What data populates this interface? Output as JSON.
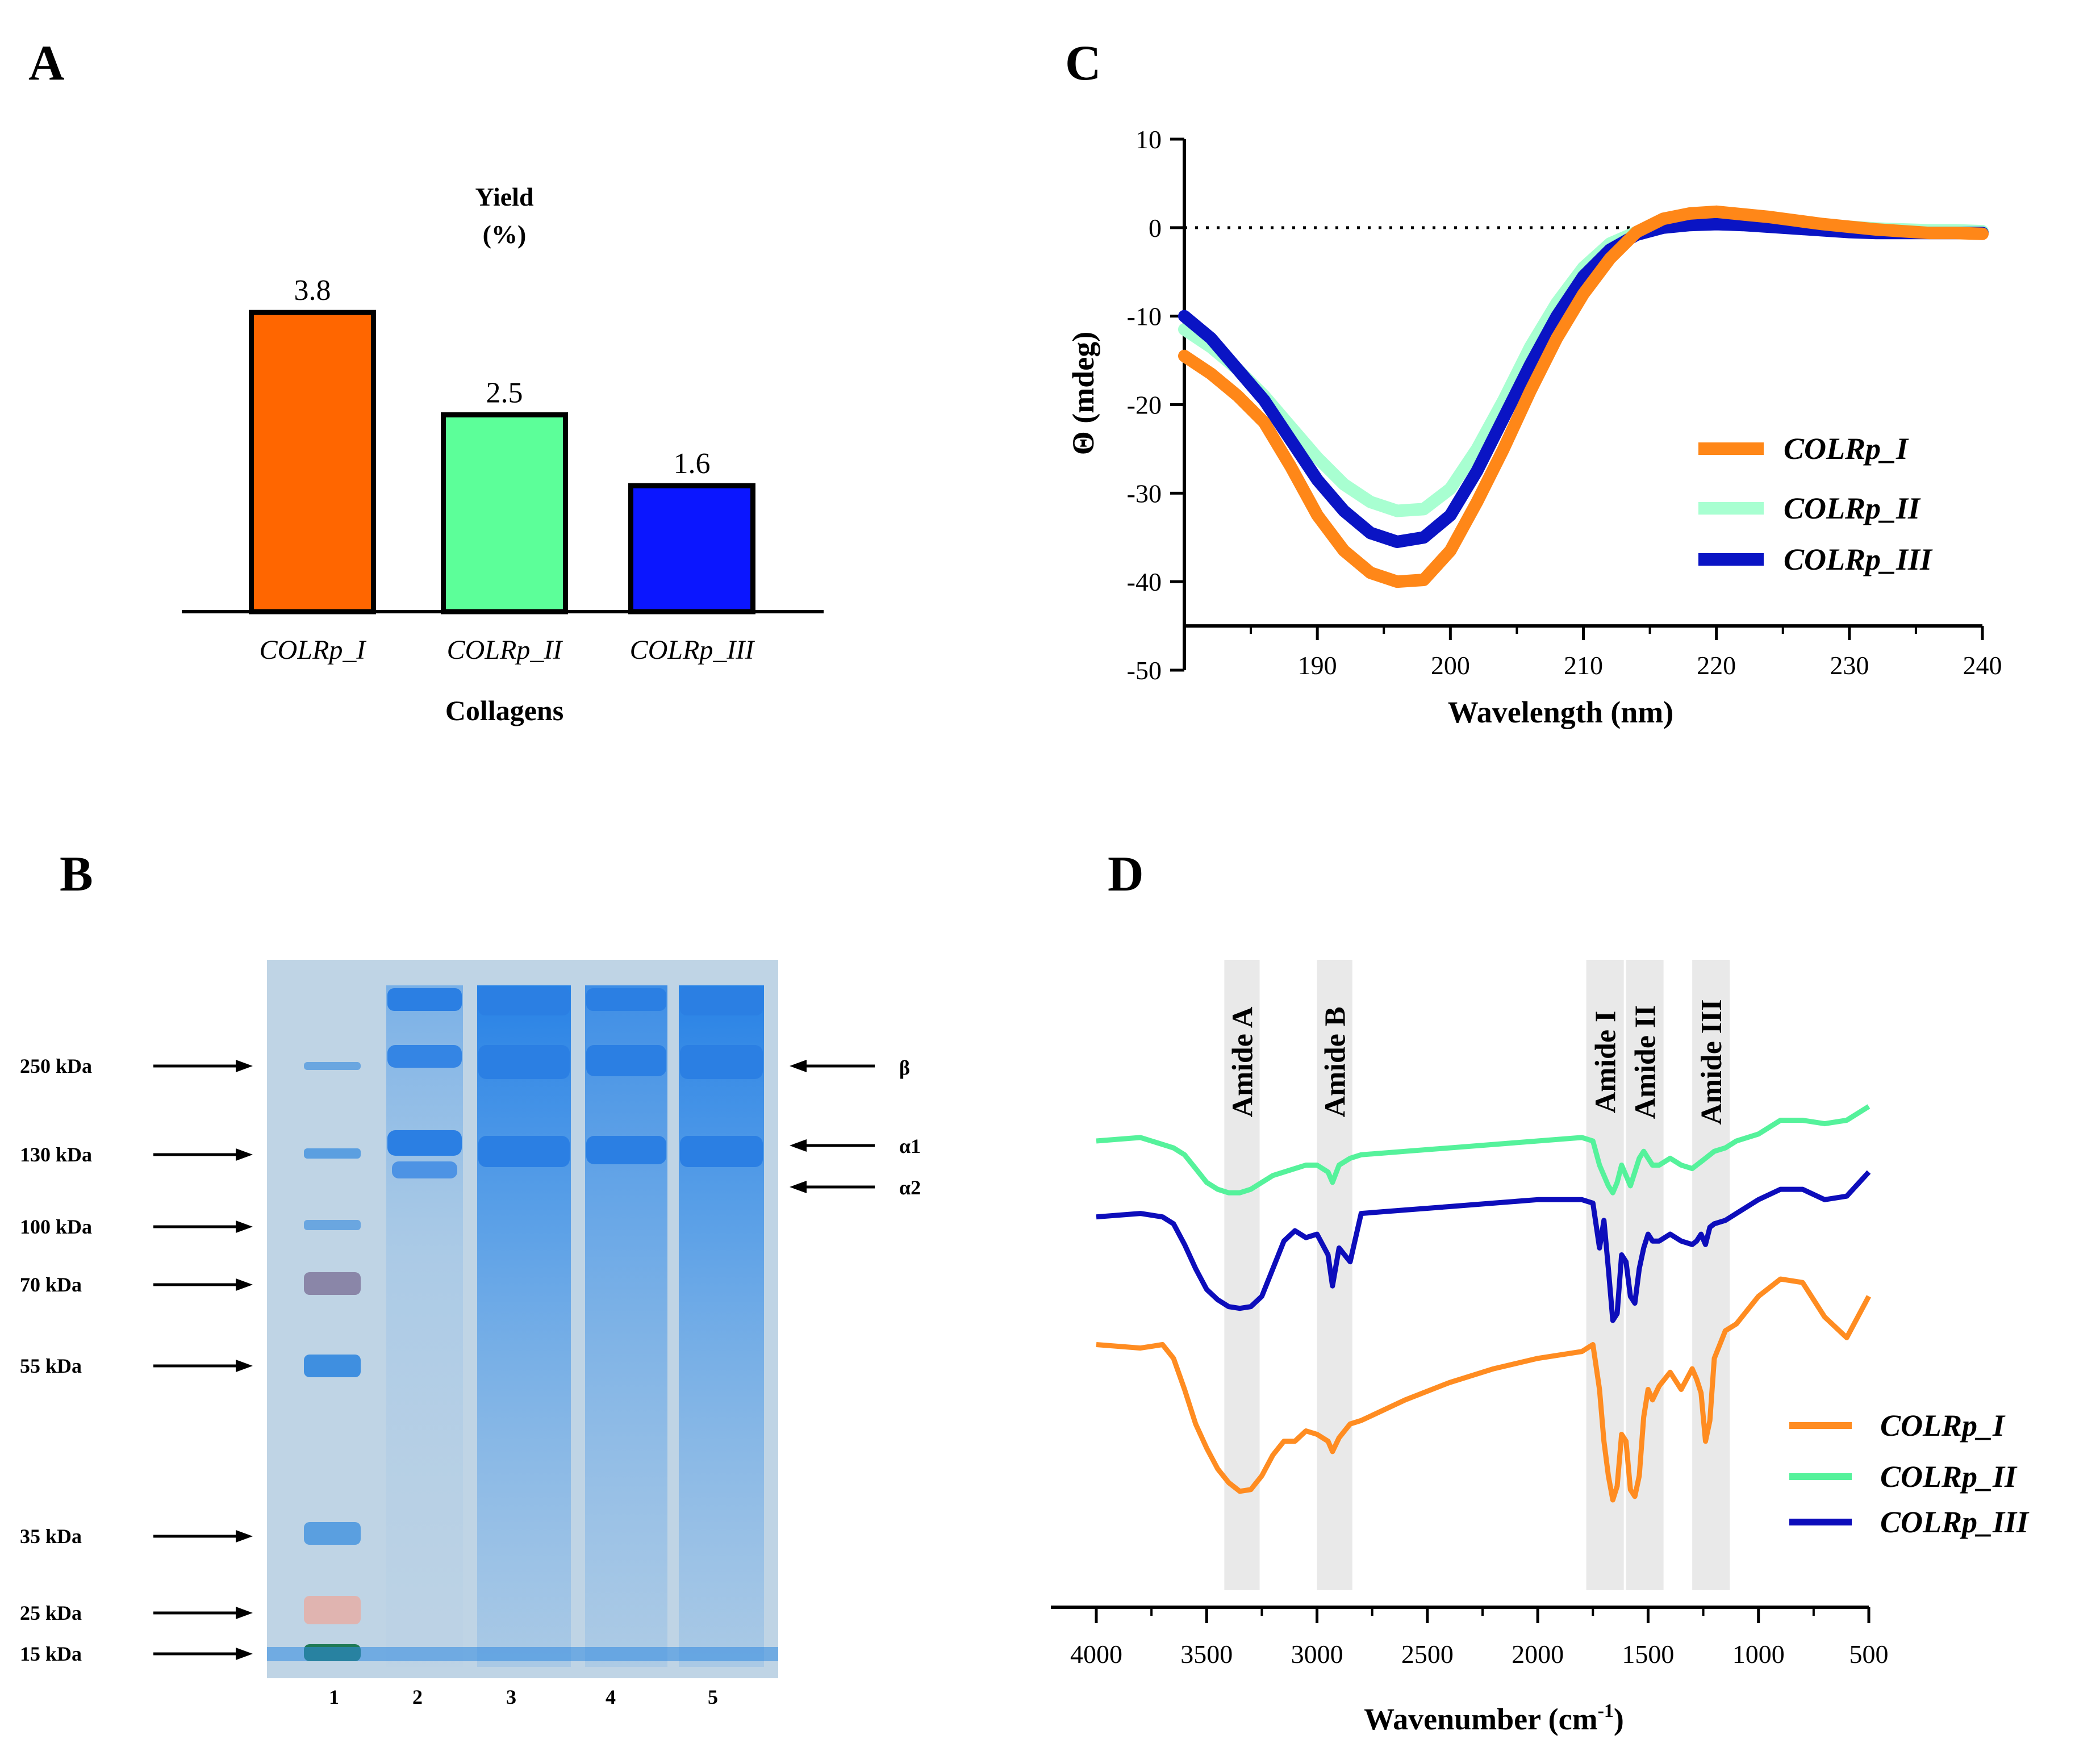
{
  "panels": {
    "A": "A",
    "B": "B",
    "C": "C",
    "D": "D"
  },
  "colors": {
    "colrp_i_bar": "#ff6600",
    "colrp_ii_bar": "#5cff99",
    "colrp_iii_bar": "#0b16ff",
    "cd_i": "#ff8718",
    "cd_ii": "#a8ffd1",
    "cd_iii": "#0a14c4",
    "ftir_i": "#ff8c21",
    "ftir_ii": "#55f29b",
    "ftir_iii": "#0d0dbb",
    "gel_bg": "#bed3e4",
    "gel_band": "#2e86e8"
  },
  "chart_data": [
    {
      "id": "A",
      "type": "bar",
      "title_line1": "Yield",
      "title_line2": "(%)",
      "xlabel": "Collagens",
      "ylabel": "",
      "categories": [
        "COLRp_I",
        "COLRp_II",
        "COLRp_III"
      ],
      "values": [
        3.8,
        2.5,
        1.6
      ],
      "value_labels": [
        "3.8",
        "2.5",
        "1.6"
      ],
      "ylim": [
        0,
        5.1
      ]
    },
    {
      "id": "C",
      "type": "line",
      "xlabel": "Wavelength (nm)",
      "ylabel": "Θ (mdeg)",
      "xlim": [
        180,
        240
      ],
      "ylim": [
        -50,
        10
      ],
      "xticks": [
        190,
        200,
        210,
        220,
        230,
        240
      ],
      "yticks": [
        10,
        0,
        -10,
        -20,
        -30,
        -40,
        -50
      ],
      "zero_line": "dotted",
      "legend_position": "right",
      "series": [
        {
          "name": "COLRp_I",
          "x": [
            180,
            182,
            184,
            186,
            188,
            190,
            192,
            194,
            196,
            198,
            200,
            202,
            204,
            206,
            208,
            210,
            212,
            214,
            216,
            218,
            220,
            222,
            224,
            226,
            228,
            230,
            232,
            234,
            236,
            238,
            240
          ],
          "y": [
            -14.5,
            -16.5,
            -19,
            -22,
            -27,
            -32.5,
            -36.5,
            -39,
            -40,
            -39.8,
            -36.5,
            -31,
            -25,
            -18.5,
            -12.5,
            -7.5,
            -3.5,
            -0.5,
            1,
            1.6,
            1.8,
            1.5,
            1.2,
            0.8,
            0.4,
            0.1,
            -0.2,
            -0.4,
            -0.6,
            -0.6,
            -0.7
          ]
        },
        {
          "name": "COLRp_II",
          "x": [
            180,
            182,
            184,
            186,
            188,
            190,
            192,
            194,
            196,
            198,
            200,
            202,
            204,
            206,
            208,
            210,
            212,
            214,
            216,
            218,
            220,
            222,
            224,
            226,
            228,
            230,
            232,
            234,
            236,
            238,
            240
          ],
          "y": [
            -11.5,
            -13.5,
            -16,
            -19,
            -22.5,
            -26,
            -29,
            -31,
            -32,
            -31.8,
            -29.5,
            -25,
            -19.5,
            -13.5,
            -8.5,
            -4.5,
            -1.8,
            -0.5,
            0.3,
            0.6,
            0.7,
            0.7,
            0.6,
            0.4,
            0.2,
            0.1,
            -0.1,
            -0.2,
            -0.3,
            -0.3,
            -0.4
          ]
        },
        {
          "name": "COLRp_III",
          "x": [
            180,
            182,
            184,
            186,
            188,
            190,
            192,
            194,
            196,
            198,
            200,
            202,
            204,
            206,
            208,
            210,
            212,
            214,
            216,
            218,
            220,
            222,
            224,
            226,
            228,
            230,
            232,
            234,
            236,
            238,
            240
          ],
          "y": [
            -10,
            -12.5,
            -16,
            -19.5,
            -24,
            -28.5,
            -32,
            -34.5,
            -35.5,
            -35,
            -32.5,
            -27.5,
            -21.5,
            -15.5,
            -10,
            -5.5,
            -2.5,
            -0.8,
            0,
            0.3,
            0.4,
            0.3,
            0.1,
            -0.1,
            -0.3,
            -0.5,
            -0.6,
            -0.6,
            -0.6,
            -0.6,
            -0.6
          ]
        }
      ]
    },
    {
      "id": "D",
      "type": "line",
      "xlabel": "Wavenumber (cm",
      "xlabel_sup": "-1",
      "xlabel_end": ")",
      "ylabel": "",
      "xlim": [
        4000,
        500
      ],
      "xticks": [
        4000,
        3500,
        3000,
        2500,
        2000,
        1500,
        1000,
        500
      ],
      "legend_position": "right",
      "bands": [
        {
          "label": "Amide A",
          "from": 3420,
          "to": 3260
        },
        {
          "label": "Amide B",
          "from": 3000,
          "to": 2840
        },
        {
          "label": "Amide I",
          "from": 1780,
          "to": 1610
        },
        {
          "label": "Amide II",
          "from": 1600,
          "to": 1430
        },
        {
          "label": "Amide III",
          "from": 1300,
          "to": 1130
        }
      ],
      "series": [
        {
          "name": "COLRp_I",
          "x": [
            4000,
            3800,
            3700,
            3650,
            3600,
            3550,
            3500,
            3450,
            3400,
            3350,
            3300,
            3250,
            3200,
            3150,
            3100,
            3050,
            3000,
            2950,
            2930,
            2900,
            2850,
            2800,
            2600,
            2400,
            2200,
            2000,
            1800,
            1750,
            1720,
            1700,
            1680,
            1660,
            1640,
            1620,
            1600,
            1580,
            1560,
            1540,
            1520,
            1500,
            1480,
            1450,
            1400,
            1350,
            1300,
            1280,
            1260,
            1240,
            1220,
            1200,
            1150,
            1100,
            1000,
            900,
            800,
            700,
            600,
            500
          ],
          "y": [
            0.58,
            0.57,
            0.58,
            0.54,
            0.45,
            0.35,
            0.28,
            0.22,
            0.18,
            0.155,
            0.16,
            0.2,
            0.26,
            0.3,
            0.3,
            0.33,
            0.32,
            0.3,
            0.27,
            0.31,
            0.35,
            0.36,
            0.42,
            0.47,
            0.51,
            0.54,
            0.56,
            0.58,
            0.45,
            0.3,
            0.2,
            0.13,
            0.17,
            0.32,
            0.3,
            0.16,
            0.14,
            0.2,
            0.37,
            0.45,
            0.42,
            0.46,
            0.5,
            0.45,
            0.51,
            0.48,
            0.44,
            0.3,
            0.36,
            0.54,
            0.62,
            0.64,
            0.72,
            0.77,
            0.76,
            0.66,
            0.6,
            0.72
          ]
        },
        {
          "name": "COLRp_II",
          "x": [
            4000,
            3800,
            3700,
            3650,
            3600,
            3550,
            3500,
            3450,
            3400,
            3350,
            3300,
            3250,
            3200,
            3150,
            3100,
            3050,
            3000,
            2950,
            2930,
            2900,
            2850,
            2800,
            2600,
            2400,
            2200,
            2000,
            1800,
            1750,
            1720,
            1700,
            1680,
            1660,
            1640,
            1620,
            1600,
            1580,
            1560,
            1540,
            1520,
            1500,
            1480,
            1450,
            1400,
            1350,
            1300,
            1280,
            1260,
            1240,
            1220,
            1200,
            1150,
            1100,
            1000,
            900,
            800,
            700,
            600,
            500
          ],
          "y": [
            1.17,
            1.18,
            1.16,
            1.15,
            1.13,
            1.09,
            1.05,
            1.03,
            1.02,
            1.02,
            1.03,
            1.05,
            1.07,
            1.08,
            1.09,
            1.1,
            1.1,
            1.08,
            1.05,
            1.1,
            1.12,
            1.13,
            1.14,
            1.15,
            1.16,
            1.17,
            1.18,
            1.17,
            1.1,
            1.07,
            1.04,
            1.02,
            1.05,
            1.1,
            1.07,
            1.04,
            1.08,
            1.12,
            1.14,
            1.12,
            1.1,
            1.1,
            1.12,
            1.1,
            1.09,
            1.1,
            1.11,
            1.12,
            1.13,
            1.14,
            1.15,
            1.17,
            1.19,
            1.23,
            1.23,
            1.22,
            1.23,
            1.27
          ]
        },
        {
          "name": "COLRp_III",
          "x": [
            4000,
            3800,
            3700,
            3650,
            3600,
            3550,
            3500,
            3450,
            3400,
            3350,
            3300,
            3250,
            3200,
            3150,
            3100,
            3050,
            3000,
            2950,
            2930,
            2900,
            2850,
            2800,
            2600,
            2400,
            2200,
            2000,
            1800,
            1750,
            1720,
            1700,
            1680,
            1660,
            1640,
            1620,
            1600,
            1580,
            1560,
            1540,
            1520,
            1500,
            1480,
            1450,
            1400,
            1350,
            1300,
            1280,
            1260,
            1240,
            1220,
            1200,
            1150,
            1100,
            1000,
            900,
            800,
            700,
            600,
            500
          ],
          "y": [
            0.95,
            0.96,
            0.95,
            0.93,
            0.87,
            0.8,
            0.74,
            0.71,
            0.69,
            0.685,
            0.69,
            0.72,
            0.8,
            0.88,
            0.91,
            0.89,
            0.9,
            0.84,
            0.75,
            0.86,
            0.82,
            0.96,
            0.97,
            0.98,
            0.99,
            1.0,
            1.0,
            0.99,
            0.86,
            0.94,
            0.8,
            0.65,
            0.67,
            0.84,
            0.82,
            0.72,
            0.7,
            0.8,
            0.86,
            0.9,
            0.88,
            0.88,
            0.9,
            0.88,
            0.87,
            0.88,
            0.9,
            0.87,
            0.92,
            0.93,
            0.94,
            0.96,
            1.0,
            1.03,
            1.03,
            1.0,
            1.01,
            1.08
          ]
        }
      ]
    }
  ],
  "gel": {
    "lane_numbers": [
      "1",
      "2",
      "3",
      "4",
      "5"
    ],
    "marker_labels": [
      "250 kDa",
      "130 kDa",
      "100 kDa",
      "70 kDa",
      "55 kDa",
      "35 kDa",
      "25 kDa",
      "15 kDa"
    ],
    "band_labels": [
      "β",
      "α1",
      "α2"
    ]
  },
  "cd_legend": [
    "COLRp_I",
    "COLRp_II",
    "COLRp_III"
  ],
  "ftir_legend": [
    "COLRp_I",
    "COLRp_II",
    "COLRp_III"
  ]
}
